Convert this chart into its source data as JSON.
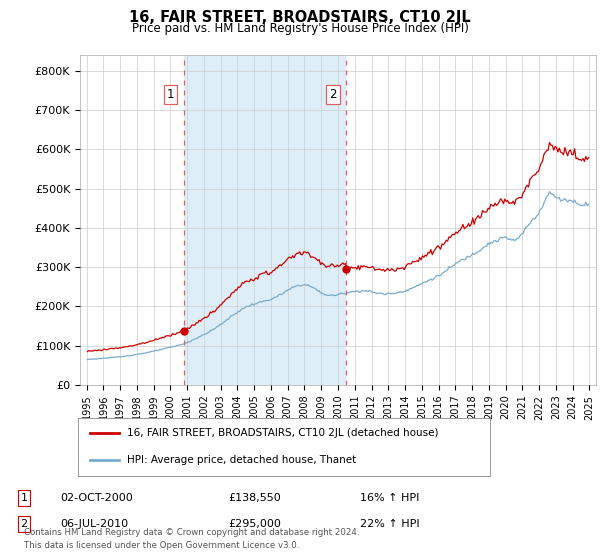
{
  "title": "16, FAIR STREET, BROADSTAIRS, CT10 2JL",
  "subtitle": "Price paid vs. HM Land Registry's House Price Index (HPI)",
  "ylim": [
    0,
    840000
  ],
  "yticks": [
    0,
    100000,
    200000,
    300000,
    400000,
    500000,
    600000,
    700000,
    800000
  ],
  "ytick_labels": [
    "£0",
    "£100K",
    "£200K",
    "£300K",
    "£400K",
    "£500K",
    "£600K",
    "£700K",
    "£800K"
  ],
  "red_line_color": "#cc0000",
  "blue_line_color": "#7aabcf",
  "shade_color": "#ddeef8",
  "dashed_line_color": "#e06060",
  "legend_label_red": "16, FAIR STREET, BROADSTAIRS, CT10 2JL (detached house)",
  "legend_label_blue": "HPI: Average price, detached house, Thanet",
  "annotation1_date": "02-OCT-2000",
  "annotation1_price": "£138,550",
  "annotation1_hpi": "16% ↑ HPI",
  "annotation2_date": "06-JUL-2010",
  "annotation2_price": "£295,000",
  "annotation2_hpi": "22% ↑ HPI",
  "footer": "Contains HM Land Registry data © Crown copyright and database right 2024.\nThis data is licensed under the Open Government Licence v3.0.",
  "background_color": "#ffffff",
  "grid_color": "#cccccc",
  "sale1_x": 2000.792,
  "sale1_y": 138550,
  "sale2_x": 2010.5,
  "sale2_y": 295000,
  "vline1_x": 2000.792,
  "vline2_x": 2010.5,
  "xlim_left": 1994.6,
  "xlim_right": 2025.4
}
